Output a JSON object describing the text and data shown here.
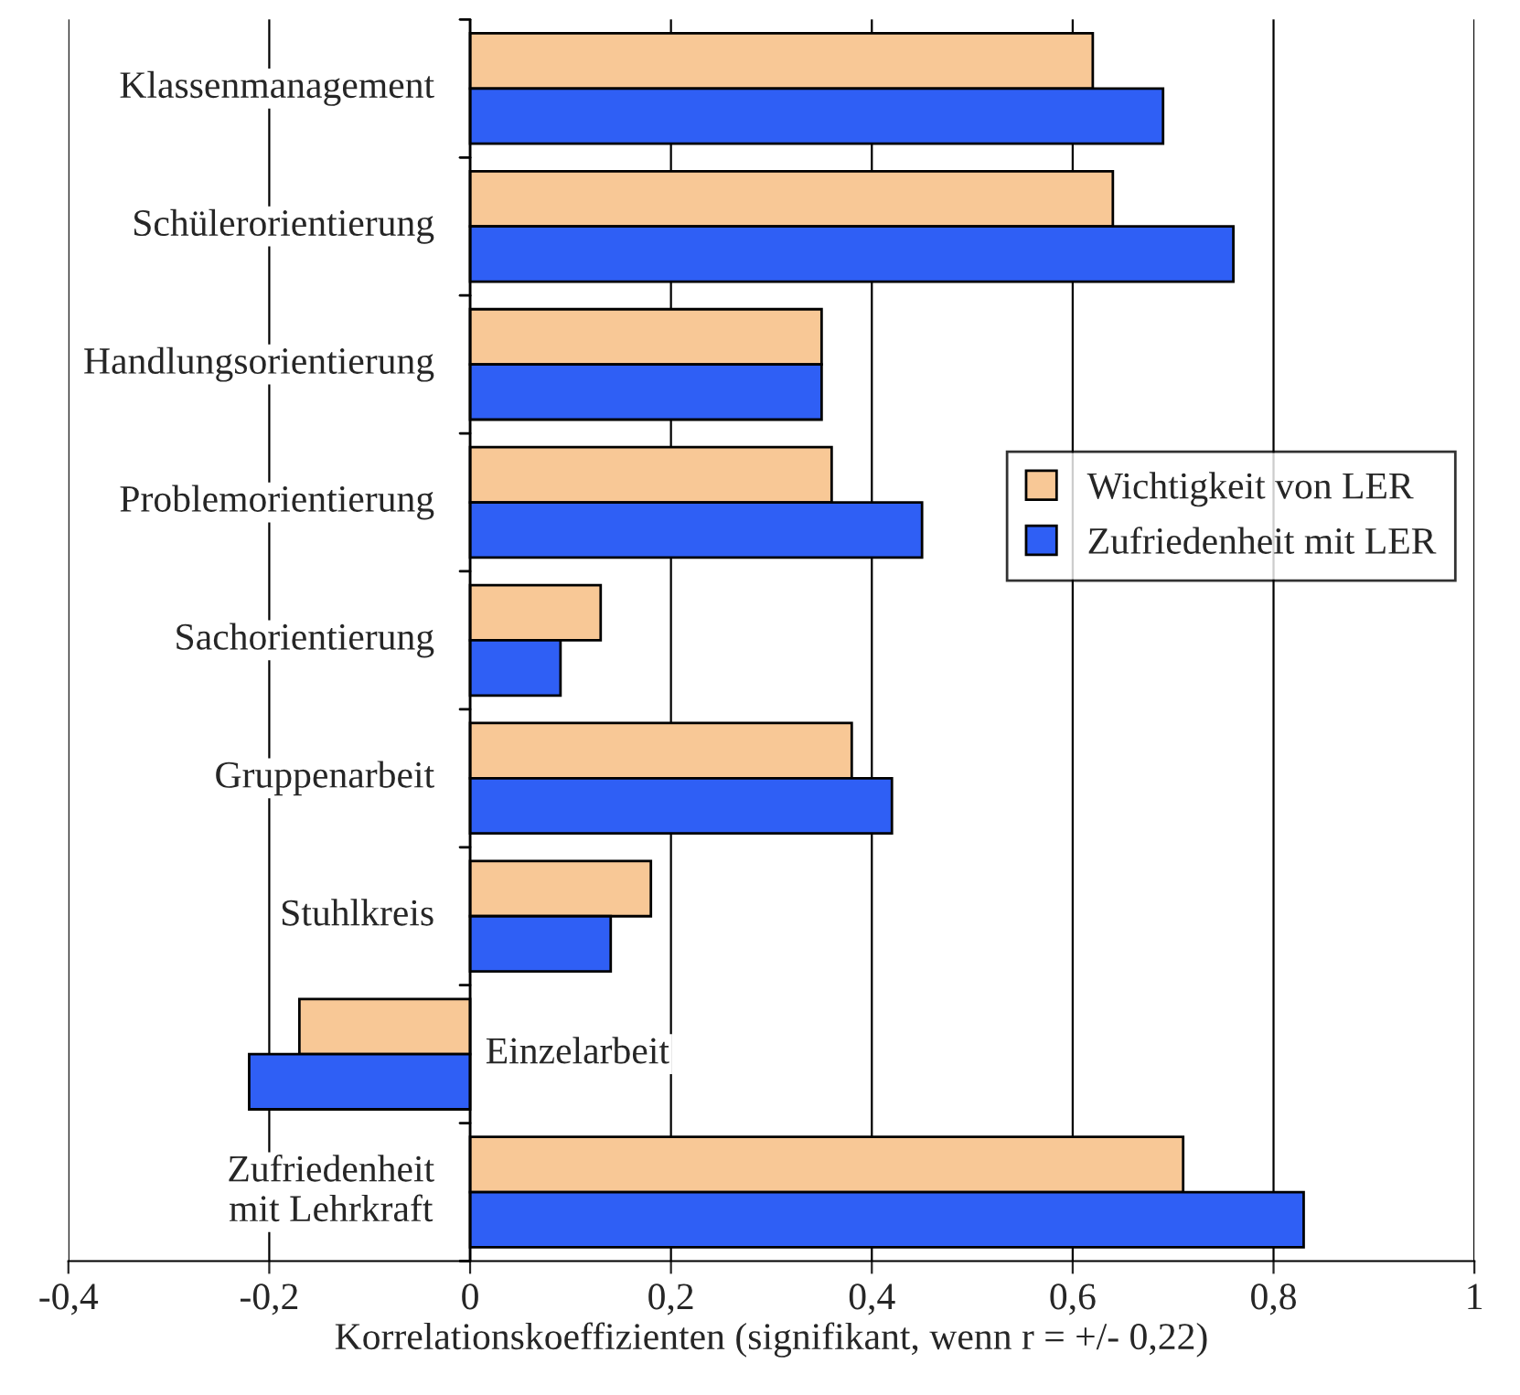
{
  "chart_data": {
    "type": "bar",
    "orientation": "horizontal",
    "xlabel": "Korrelationskoeffizienten (signifikant, wenn r = +/- 0,22)",
    "categories": [
      "Klassenmanagement",
      "Schülerorientierung",
      "Handlungsorientierung",
      "Problemorientierung",
      "Sachorientierung",
      "Gruppenarbeit",
      "Stuhlkreis",
      "Einzelarbeit",
      "Zufriedenheit\nmit Lehrkraft"
    ],
    "series": [
      {
        "name": "Wichtigkeit von LER",
        "color": "#f8c896",
        "values": [
          0.62,
          0.64,
          0.35,
          0.36,
          0.13,
          0.38,
          0.18,
          -0.17,
          0.71
        ]
      },
      {
        "name": "Zufriedenheit mit LER",
        "color": "#2f5ff5",
        "values": [
          0.69,
          0.76,
          0.35,
          0.45,
          0.09,
          0.42,
          0.14,
          -0.22,
          0.83
        ]
      }
    ],
    "xlim": [
      -0.4,
      1.0
    ],
    "xticks": [
      {
        "value": -0.4,
        "label": "-0,4"
      },
      {
        "value": -0.2,
        "label": "-0,2"
      },
      {
        "value": 0,
        "label": "0"
      },
      {
        "value": 0.2,
        "label": "0,2"
      },
      {
        "value": 0.4,
        "label": "0,4"
      },
      {
        "value": 0.6,
        "label": "0,6"
      },
      {
        "value": 0.8,
        "label": "0,8"
      },
      {
        "value": 1.0,
        "label": "1"
      }
    ],
    "grid": "x",
    "legend": "right"
  }
}
